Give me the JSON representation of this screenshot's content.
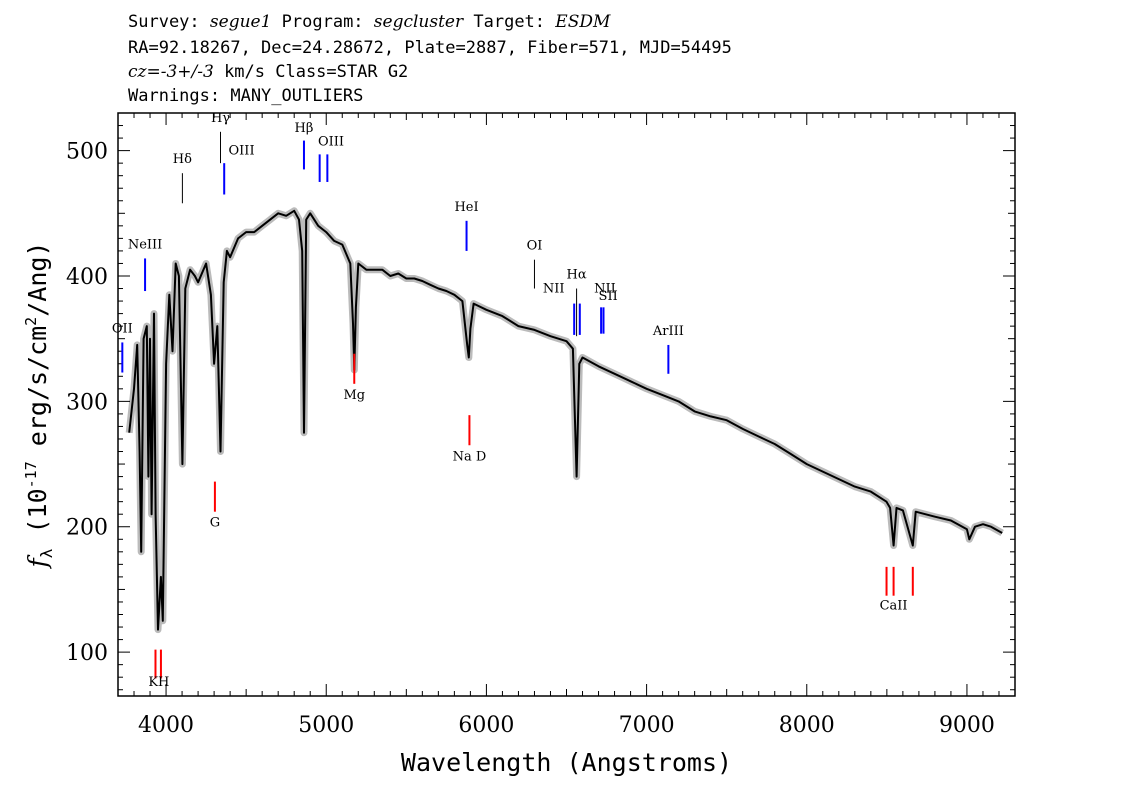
{
  "header": {
    "survey_label": "Survey:",
    "survey": "segue1",
    "program_label": "Program:",
    "program": "segcluster",
    "target_label": "Target:",
    "target": "ESDM",
    "line2": "RA=92.18267, Dec=24.28672, Plate=2887, Fiber=571, MJD=54495",
    "cz": "cz=-3+/-3",
    "line3_rest": " km/s Class=STAR G2",
    "line4": "Warnings: MANY_OUTLIERS"
  },
  "colors": {
    "emission": "#0000ff",
    "absorption": "#ff0000",
    "spectrum": "#000000",
    "error_band": "#bbbbbb"
  },
  "chart_data": {
    "type": "line",
    "xlabel": "Wavelength (Angstroms)",
    "ylabel": "f_λ (10^-17 erg/s/cm^2/Ang)",
    "xlim": [
      3700,
      9300
    ],
    "ylim": [
      65,
      530
    ],
    "xticks": [
      4000,
      5000,
      6000,
      7000,
      8000,
      9000
    ],
    "yticks": [
      100,
      200,
      300,
      400,
      500
    ],
    "series": [
      {
        "points": [
          [
            3770,
            275
          ],
          [
            3800,
            310
          ],
          [
            3820,
            345
          ],
          [
            3835,
            260
          ],
          [
            3845,
            180
          ],
          [
            3860,
            350
          ],
          [
            3880,
            360
          ],
          [
            3890,
            240
          ],
          [
            3900,
            350
          ],
          [
            3910,
            210
          ],
          [
            3925,
            370
          ],
          [
            3935,
            210
          ],
          [
            3950,
            118
          ],
          [
            3968,
            160
          ],
          [
            3980,
            125
          ],
          [
            4000,
            330
          ],
          [
            4020,
            385
          ],
          [
            4040,
            340
          ],
          [
            4060,
            410
          ],
          [
            4080,
            400
          ],
          [
            4102,
            250
          ],
          [
            4120,
            390
          ],
          [
            4150,
            405
          ],
          [
            4180,
            400
          ],
          [
            4200,
            395
          ],
          [
            4250,
            410
          ],
          [
            4280,
            385
          ],
          [
            4300,
            330
          ],
          [
            4320,
            360
          ],
          [
            4340,
            260
          ],
          [
            4360,
            395
          ],
          [
            4380,
            420
          ],
          [
            4400,
            415
          ],
          [
            4450,
            430
          ],
          [
            4500,
            435
          ],
          [
            4550,
            435
          ],
          [
            4600,
            440
          ],
          [
            4650,
            445
          ],
          [
            4700,
            450
          ],
          [
            4750,
            448
          ],
          [
            4800,
            452
          ],
          [
            4830,
            445
          ],
          [
            4850,
            420
          ],
          [
            4861,
            275
          ],
          [
            4875,
            445
          ],
          [
            4900,
            450
          ],
          [
            4950,
            440
          ],
          [
            5000,
            435
          ],
          [
            5050,
            428
          ],
          [
            5100,
            425
          ],
          [
            5150,
            410
          ],
          [
            5167,
            362
          ],
          [
            5175,
            325
          ],
          [
            5185,
            375
          ],
          [
            5200,
            410
          ],
          [
            5250,
            405
          ],
          [
            5300,
            405
          ],
          [
            5350,
            405
          ],
          [
            5400,
            400
          ],
          [
            5450,
            402
          ],
          [
            5500,
            398
          ],
          [
            5550,
            398
          ],
          [
            5600,
            396
          ],
          [
            5650,
            393
          ],
          [
            5700,
            390
          ],
          [
            5750,
            388
          ],
          [
            5800,
            385
          ],
          [
            5850,
            380
          ],
          [
            5880,
            345
          ],
          [
            5890,
            335
          ],
          [
            5900,
            358
          ],
          [
            5920,
            378
          ],
          [
            6000,
            373
          ],
          [
            6100,
            368
          ],
          [
            6200,
            360
          ],
          [
            6300,
            357
          ],
          [
            6400,
            352
          ],
          [
            6500,
            348
          ],
          [
            6540,
            342
          ],
          [
            6563,
            240
          ],
          [
            6580,
            330
          ],
          [
            6600,
            335
          ],
          [
            6700,
            328
          ],
          [
            6800,
            322
          ],
          [
            6900,
            316
          ],
          [
            7000,
            310
          ],
          [
            7100,
            305
          ],
          [
            7200,
            300
          ],
          [
            7300,
            292
          ],
          [
            7400,
            288
          ],
          [
            7500,
            285
          ],
          [
            7600,
            278
          ],
          [
            7700,
            272
          ],
          [
            7800,
            266
          ],
          [
            7900,
            258
          ],
          [
            8000,
            250
          ],
          [
            8100,
            244
          ],
          [
            8200,
            238
          ],
          [
            8300,
            232
          ],
          [
            8400,
            228
          ],
          [
            8498,
            220
          ],
          [
            8520,
            215
          ],
          [
            8542,
            185
          ],
          [
            8560,
            215
          ],
          [
            8600,
            213
          ],
          [
            8662,
            185
          ],
          [
            8680,
            212
          ],
          [
            8800,
            208
          ],
          [
            8900,
            205
          ],
          [
            9000,
            198
          ],
          [
            9015,
            190
          ],
          [
            9050,
            200
          ],
          [
            9100,
            202
          ],
          [
            9150,
            200
          ],
          [
            9220,
            195
          ]
        ]
      }
    ],
    "lines": [
      {
        "label": "OII",
        "wave": 3727,
        "kind": "emission",
        "y1": 347,
        "y2": 323,
        "lx": 3727,
        "ly": 355,
        "anchor": "middle"
      },
      {
        "label": "NeIII",
        "wave": 3869,
        "kind": "emission",
        "y1": 414,
        "y2": 388,
        "lx": 3869,
        "ly": 422,
        "anchor": "middle"
      },
      {
        "label": "Hδ",
        "wave": 4102,
        "kind": "hydrogen",
        "y1": 482,
        "y2": 458,
        "lx": 4102,
        "ly": 490,
        "anchor": "middle"
      },
      {
        "label": "Hγ",
        "wave": 4340,
        "kind": "hydrogen",
        "y1": 515,
        "y2": 490,
        "lx": 4340,
        "ly": 523,
        "anchor": "middle"
      },
      {
        "label": "OIII",
        "wave": 4363,
        "kind": "emission",
        "y1": 490,
        "y2": 465,
        "lx": 4390,
        "ly": 497,
        "anchor": "start"
      },
      {
        "label": "Hβ",
        "wave": 4861,
        "kind": "emission",
        "y1": 508,
        "y2": 485,
        "lx": 4861,
        "ly": 515,
        "anchor": "middle"
      },
      {
        "label": "OIII",
        "wave": 4959,
        "kind": "emission",
        "y1": 497,
        "y2": 475,
        "lx": 5030,
        "ly": 504,
        "anchor": "middle"
      },
      {
        "label": "OIII",
        "wave": 5007,
        "kind": "emission",
        "y1": 497,
        "y2": 475,
        "lx": null,
        "ly": null,
        "anchor": "middle"
      },
      {
        "label": "HeI",
        "wave": 5876,
        "kind": "emission",
        "y1": 444,
        "y2": 420,
        "lx": 5876,
        "ly": 452,
        "anchor": "middle"
      },
      {
        "label": "OI",
        "wave": 6300,
        "kind": "hydrogen",
        "y1": 413,
        "y2": 390,
        "lx": 6300,
        "ly": 421,
        "anchor": "middle"
      },
      {
        "label": "NII",
        "wave": 6548,
        "kind": "emission",
        "y1": 378,
        "y2": 353,
        "lx": 6420,
        "ly": 387,
        "anchor": "middle"
      },
      {
        "label": "Hα",
        "wave": 6563,
        "kind": "hydrogen",
        "y1": 390,
        "y2": 352,
        "lx": 6563,
        "ly": 398,
        "anchor": "middle"
      },
      {
        "label": "NII",
        "wave": 6583,
        "kind": "emission",
        "y1": 378,
        "y2": 353,
        "lx": null,
        "ly": null,
        "anchor": "middle"
      },
      {
        "label": "NII",
        "wave": 6716,
        "kind": "emission",
        "y1": 375,
        "y2": 354,
        "lx": 6740,
        "ly": 387,
        "anchor": "middle"
      },
      {
        "label": "SII",
        "wave": 6731,
        "kind": "emission",
        "y1": 375,
        "y2": 354,
        "lx": 6760,
        "ly": 381,
        "anchor": "middle"
      },
      {
        "label": "ArIII",
        "wave": 7136,
        "kind": "emission",
        "y1": 345,
        "y2": 322,
        "lx": 7136,
        "ly": 353,
        "anchor": "middle"
      },
      {
        "label": "K",
        "wave": 3934,
        "kind": "absorption",
        "y1": 102,
        "y2": 79,
        "lx": 3920,
        "ly": 73,
        "anchor": "middle"
      },
      {
        "label": "H",
        "wave": 3968,
        "kind": "absorption",
        "y1": 102,
        "y2": 79,
        "lx": 3985,
        "ly": 73,
        "anchor": "middle"
      },
      {
        "label": "G",
        "wave": 4305,
        "kind": "absorption",
        "y1": 236,
        "y2": 212,
        "lx": 4305,
        "ly": 200,
        "anchor": "middle"
      },
      {
        "label": "Mg",
        "wave": 5175,
        "kind": "absorption",
        "y1": 338,
        "y2": 314,
        "lx": 5175,
        "ly": 302,
        "anchor": "middle"
      },
      {
        "label": "Na D",
        "wave": 5894,
        "kind": "absorption",
        "y1": 289,
        "y2": 265,
        "lx": 5894,
        "ly": 253,
        "anchor": "middle"
      },
      {
        "label": "CaII",
        "wave": 8498,
        "kind": "absorption",
        "y1": 168,
        "y2": 145,
        "lx": 8542,
        "ly": 134,
        "anchor": "middle"
      },
      {
        "label": "CaII",
        "wave": 8542,
        "kind": "absorption",
        "y1": 168,
        "y2": 145,
        "lx": null,
        "ly": null,
        "anchor": "middle"
      },
      {
        "label": "CaII",
        "wave": 8662,
        "kind": "absorption",
        "y1": 168,
        "y2": 145,
        "lx": null,
        "ly": null,
        "anchor": "middle"
      }
    ]
  }
}
